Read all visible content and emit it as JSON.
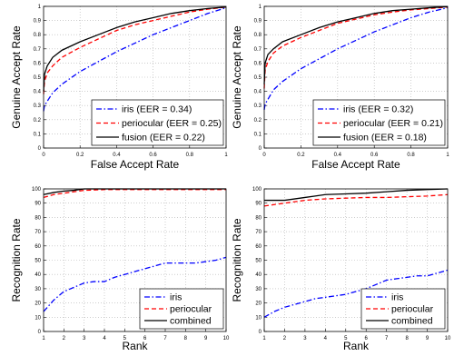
{
  "chart_data": [
    {
      "type": "line",
      "xlabel": "False Accept Rate",
      "ylabel": "Genuine Accept Rate",
      "xlim": [
        0,
        1
      ],
      "ylim": [
        0,
        1
      ],
      "xticks": [
        "0",
        "0.2",
        "0.4",
        "0.6",
        "0.8",
        "1"
      ],
      "yticks": [
        "0",
        "0.1",
        "0.2",
        "0.3",
        "0.4",
        "0.5",
        "0.6",
        "0.7",
        "0.8",
        "0.9",
        "1"
      ],
      "grid": true,
      "legend_position": "bottom-right",
      "series": [
        {
          "name": "iris (EER = 0.34)",
          "style": "dashdot",
          "color": "#0000ff",
          "x": [
            0,
            0.005,
            0.05,
            0.1,
            0.2,
            0.3,
            0.4,
            0.5,
            0.6,
            0.7,
            0.8,
            0.9,
            1.0
          ],
          "y": [
            0.26,
            0.3,
            0.39,
            0.45,
            0.54,
            0.61,
            0.68,
            0.74,
            0.8,
            0.85,
            0.9,
            0.95,
            0.99
          ]
        },
        {
          "name": "periocular (EER = 0.25)",
          "style": "dashed",
          "color": "#ff0000",
          "x": [
            0,
            0.005,
            0.02,
            0.05,
            0.1,
            0.2,
            0.3,
            0.4,
            0.5,
            0.6,
            0.7,
            0.8,
            0.9,
            1.0
          ],
          "y": [
            0.38,
            0.47,
            0.53,
            0.58,
            0.64,
            0.71,
            0.77,
            0.83,
            0.87,
            0.9,
            0.93,
            0.96,
            0.98,
            0.995
          ]
        },
        {
          "name": "fusion (EER = 0.22)",
          "style": "solid",
          "color": "#000000",
          "x": [
            0,
            0.005,
            0.02,
            0.05,
            0.1,
            0.2,
            0.3,
            0.4,
            0.5,
            0.6,
            0.7,
            0.8,
            0.9,
            1.0
          ],
          "y": [
            0.4,
            0.52,
            0.58,
            0.64,
            0.69,
            0.75,
            0.8,
            0.85,
            0.89,
            0.92,
            0.95,
            0.97,
            0.985,
            0.995
          ]
        }
      ]
    },
    {
      "type": "line",
      "xlabel": "False Accept Rate",
      "ylabel": "Genuine Accept Rate",
      "xlim": [
        0,
        1
      ],
      "ylim": [
        0,
        1
      ],
      "xticks": [
        "0",
        "0.2",
        "0.4",
        "0.6",
        "0.8",
        "1"
      ],
      "yticks": [
        "0",
        "0.1",
        "0.2",
        "0.3",
        "0.4",
        "0.5",
        "0.6",
        "0.7",
        "0.8",
        "0.9",
        "1"
      ],
      "grid": true,
      "legend_position": "bottom-right",
      "series": [
        {
          "name": "iris (EER = 0.32)",
          "style": "dashdot",
          "color": "#0000ff",
          "x": [
            0,
            0.005,
            0.05,
            0.1,
            0.2,
            0.3,
            0.4,
            0.5,
            0.6,
            0.7,
            0.8,
            0.9,
            1.0
          ],
          "y": [
            0.27,
            0.31,
            0.41,
            0.47,
            0.56,
            0.63,
            0.7,
            0.76,
            0.82,
            0.87,
            0.92,
            0.96,
            0.99
          ]
        },
        {
          "name": "periocular (EER = 0.21)",
          "style": "dashed",
          "color": "#ff0000",
          "x": [
            0,
            0.005,
            0.02,
            0.05,
            0.1,
            0.2,
            0.3,
            0.4,
            0.5,
            0.6,
            0.7,
            0.8,
            0.9,
            1.0
          ],
          "y": [
            0.42,
            0.55,
            0.61,
            0.67,
            0.72,
            0.78,
            0.83,
            0.88,
            0.91,
            0.94,
            0.96,
            0.975,
            0.985,
            0.995
          ]
        },
        {
          "name": "fusion (EER = 0.18)",
          "style": "solid",
          "color": "#000000",
          "x": [
            0,
            0.005,
            0.02,
            0.05,
            0.1,
            0.2,
            0.3,
            0.4,
            0.5,
            0.6,
            0.7,
            0.8,
            0.9,
            1.0
          ],
          "y": [
            0.45,
            0.6,
            0.66,
            0.7,
            0.75,
            0.8,
            0.85,
            0.89,
            0.92,
            0.95,
            0.97,
            0.98,
            0.99,
            0.998
          ]
        }
      ]
    },
    {
      "type": "line",
      "xlabel": "Rank",
      "ylabel": "Recognition Rate",
      "xlim": [
        1,
        10
      ],
      "ylim": [
        0,
        100
      ],
      "xticks": [
        "1",
        "2",
        "3",
        "4",
        "5",
        "6",
        "7",
        "8",
        "9",
        "10"
      ],
      "yticks": [
        "0",
        "10",
        "20",
        "30",
        "40",
        "50",
        "60",
        "70",
        "80",
        "90",
        "100"
      ],
      "grid": true,
      "legend_position": "bottom-right",
      "series": [
        {
          "name": "iris",
          "style": "dashdot",
          "color": "#0000ff",
          "x": [
            1,
            1.5,
            2,
            2.5,
            3,
            3.5,
            4,
            4.5,
            5,
            5.5,
            6,
            6.5,
            7,
            7.5,
            8,
            8.5,
            9,
            9.5,
            10
          ],
          "y": [
            14,
            22,
            28,
            31,
            34,
            35,
            35,
            38,
            40,
            42,
            44,
            46,
            48,
            48,
            48,
            48,
            49,
            50,
            52
          ]
        },
        {
          "name": "periocular",
          "style": "dashed",
          "color": "#ff0000",
          "x": [
            1,
            1.5,
            2,
            2.5,
            3,
            4,
            5,
            6,
            7,
            8,
            9,
            10
          ],
          "y": [
            94,
            96,
            97,
            98,
            99,
            99.5,
            99.5,
            99.5,
            99.5,
            99.5,
            99.5,
            99.5
          ]
        },
        {
          "name": "combined",
          "style": "solid",
          "color": "#000000",
          "x": [
            1,
            1.5,
            2,
            2.5,
            3,
            4,
            5,
            6,
            7,
            8,
            9,
            10
          ],
          "y": [
            96,
            97.5,
            98.5,
            99,
            100,
            100,
            100,
            100,
            100,
            100,
            100,
            100
          ]
        }
      ]
    },
    {
      "type": "line",
      "xlabel": "Rank",
      "ylabel": "Recognition Rate",
      "xlim": [
        1,
        10
      ],
      "ylim": [
        0,
        100
      ],
      "xticks": [
        "1",
        "2",
        "3",
        "4",
        "5",
        "6",
        "7",
        "8",
        "9",
        "10"
      ],
      "yticks": [
        "0",
        "10",
        "20",
        "30",
        "40",
        "50",
        "60",
        "70",
        "80",
        "90",
        "100"
      ],
      "grid": true,
      "legend_position": "bottom-right",
      "series": [
        {
          "name": "iris",
          "style": "dashdot",
          "color": "#0000ff",
          "x": [
            1,
            1.5,
            2,
            2.5,
            3,
            3.5,
            4,
            4.5,
            5,
            5.5,
            6,
            6.5,
            7,
            7.5,
            8,
            8.5,
            9,
            9.5,
            10
          ],
          "y": [
            10,
            14,
            17,
            19,
            21,
            23,
            24,
            25,
            26,
            28,
            30,
            33,
            36,
            37,
            38,
            39,
            39,
            41,
            43
          ]
        },
        {
          "name": "periocular",
          "style": "dashed",
          "color": "#ff0000",
          "x": [
            1,
            2,
            3,
            4,
            5,
            6,
            7,
            8,
            9,
            10
          ],
          "y": [
            88,
            90,
            92,
            93,
            93.5,
            94,
            94,
            94.5,
            95,
            96
          ]
        },
        {
          "name": "combined",
          "style": "solid",
          "color": "#000000",
          "x": [
            1,
            2,
            3,
            3.5,
            4,
            5,
            6,
            7,
            8,
            9,
            10
          ],
          "y": [
            92,
            92,
            94,
            95,
            96,
            96.5,
            97,
            98,
            99,
            99.5,
            100
          ]
        }
      ]
    }
  ]
}
